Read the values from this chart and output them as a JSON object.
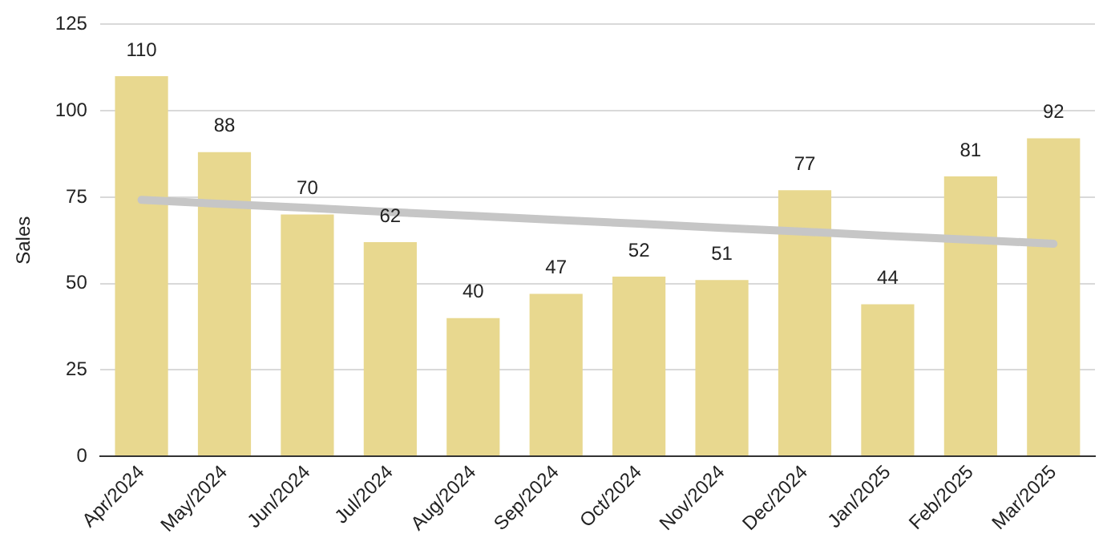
{
  "chart_data": {
    "type": "bar",
    "ylabel": "Sales",
    "categories": [
      "Apr/2024",
      "May/2024",
      "Jun/2024",
      "Jul/2024",
      "Aug/2024",
      "Sep/2024",
      "Oct/2024",
      "Nov/2024",
      "Dec/2024",
      "Jan/2025",
      "Feb/2025",
      "Mar/2025"
    ],
    "series": [
      {
        "color": "#e8d88f",
        "values": [
          110,
          88,
          70,
          62,
          40,
          47,
          52,
          51,
          77,
          44,
          81,
          92
        ],
        "value_labels": [
          "110",
          "88",
          "70",
          "62",
          "40",
          "47",
          "52",
          "51",
          "77",
          "44",
          "81",
          "92"
        ]
      },
      {
        "type": "line",
        "color": "#c6c6c6",
        "values": [
          74.2,
          73.0,
          71.9,
          70.7,
          69.6,
          68.4,
          67.3,
          66.1,
          65.0,
          63.8,
          62.7,
          61.5
        ]
      }
    ],
    "ylim": [
      0,
      125
    ],
    "yticks": [
      0,
      25,
      50,
      75,
      100,
      125
    ],
    "grid": "y",
    "legend": false,
    "marker": "none"
  }
}
